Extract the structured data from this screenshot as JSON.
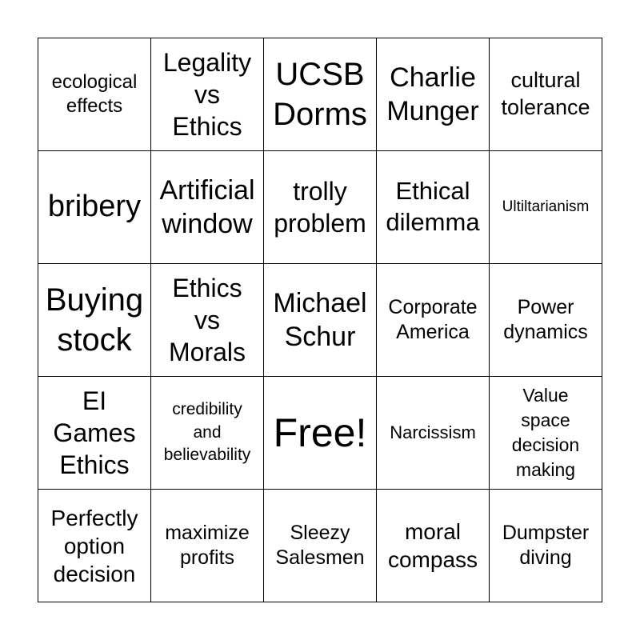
{
  "card": {
    "cells": [
      "ecological\neffects",
      "Legality\nvs\nEthics",
      "UCSB\nDorms",
      "Charlie\nMunger",
      "cultural\ntolerance",
      "bribery",
      "Artificial\nwindow",
      "trolly\nproblem",
      "Ethical\ndilemma",
      "Ultiltarianism",
      "Buying\nstock",
      "Ethics\nvs\nMorals",
      "Michael\nSchur",
      "Corporate\nAmerica",
      "Power\ndynamics",
      "EI\nGames\nEthics",
      "credibility\nand\nbelievability",
      "Free!",
      "Narcissism",
      "Value\nspace\ndecision\nmaking",
      "Perfectly\noption\ndecision",
      "maximize\nprofits",
      "Sleezy\nSalesmen",
      "moral\ncompass",
      "Dumpster\ndiving"
    ]
  }
}
